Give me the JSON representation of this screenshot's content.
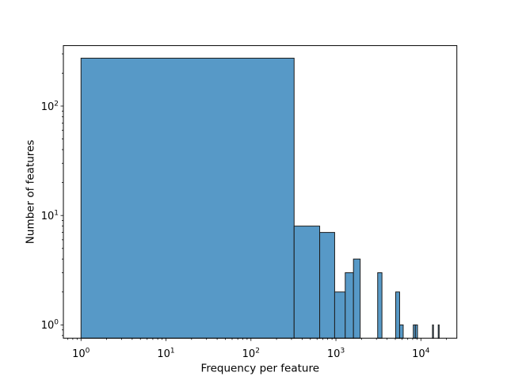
{
  "chart_data": {
    "type": "bar",
    "subtype": "histogram",
    "title": "",
    "xlabel": "Frequency per feature",
    "ylabel": "Number of features",
    "xscale": "log",
    "yscale": "log",
    "xlim": [
      0.62,
      26500
    ],
    "ylim": [
      0.756,
      357
    ],
    "grid": false,
    "legend": null,
    "x_ticks": [
      {
        "value": 1,
        "label": "10⁰",
        "exp": "0"
      },
      {
        "value": 10,
        "label": "10¹",
        "exp": "1"
      },
      {
        "value": 100,
        "label": "10²",
        "exp": "2"
      },
      {
        "value": 1000,
        "label": "10³",
        "exp": "3"
      },
      {
        "value": 10000,
        "label": "10⁴",
        "exp": "4"
      }
    ],
    "y_ticks": [
      {
        "value": 1,
        "label": "10⁰",
        "exp": "0"
      },
      {
        "value": 10,
        "label": "10¹",
        "exp": "1"
      },
      {
        "value": 100,
        "label": "10²",
        "exp": "2"
      }
    ],
    "bars": [
      {
        "x0": 1,
        "x1": 322,
        "count": 274
      },
      {
        "x0": 322,
        "x1": 644,
        "count": 8
      },
      {
        "x0": 644,
        "x1": 966,
        "count": 7
      },
      {
        "x0": 966,
        "x1": 1287,
        "count": 2
      },
      {
        "x0": 1287,
        "x1": 1609,
        "count": 3
      },
      {
        "x0": 1609,
        "x1": 1930,
        "count": 4
      },
      {
        "x0": 3100,
        "x1": 3480,
        "count": 3
      },
      {
        "x0": 5050,
        "x1": 5620,
        "count": 2
      },
      {
        "x0": 5620,
        "x1": 6190,
        "count": 1
      },
      {
        "x0": 8140,
        "x1": 8610,
        "count": 1
      },
      {
        "x0": 8610,
        "x1": 9120,
        "count": 1
      },
      {
        "x0": 13700,
        "x1": 14050,
        "count": 1
      },
      {
        "x0": 16000,
        "x1": 16400,
        "count": 1
      }
    ],
    "colors": {
      "bar_fill": "#5799c7",
      "bar_edge": "#1c1c1c",
      "axis": "#000000",
      "background": "#ffffff"
    }
  }
}
